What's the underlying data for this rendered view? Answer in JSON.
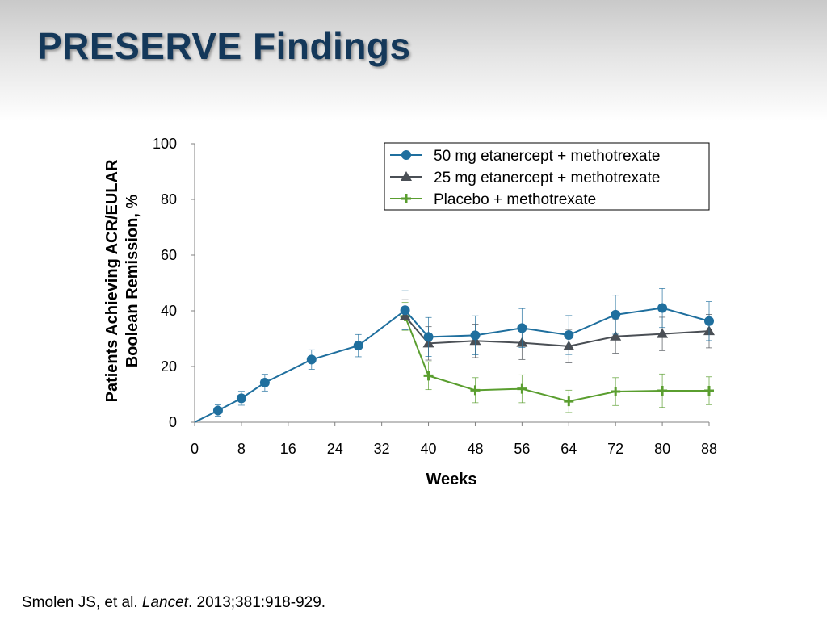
{
  "slide": {
    "title": "PRESERVE Findings",
    "citation_authors": "Smolen JS, et al.",
    "citation_journal": "Lancet",
    "citation_details": ". 2013;381:918-929."
  },
  "chart_data": {
    "type": "line",
    "title": "",
    "xlabel": "Weeks",
    "ylabel_lines": [
      "Patients Achieving ACR/EULAR",
      "Boolean Remission, %"
    ],
    "xlim": [
      0,
      88
    ],
    "ylim": [
      0,
      100
    ],
    "x_ticks": [
      0,
      8,
      16,
      24,
      32,
      40,
      48,
      56,
      64,
      72,
      80,
      88
    ],
    "y_ticks": [
      0,
      20,
      40,
      60,
      80,
      100
    ],
    "grid": false,
    "legend_position": "top-right",
    "series": [
      {
        "name": "Placebo + methotrexate",
        "color": "#5a9e2f",
        "marker": "plus",
        "x": [
          36,
          40,
          48,
          56,
          64,
          72,
          80,
          88
        ],
        "y": [
          38,
          16.7,
          11.5,
          12,
          7.5,
          11,
          11.3,
          11.3
        ],
        "err": [
          5,
          5,
          4.5,
          5,
          4,
          5,
          6,
          5
        ]
      },
      {
        "name": "25 mg etanercept + methotrexate",
        "color": "#4a4f55",
        "marker": "triangle",
        "x": [
          36,
          40,
          48,
          56,
          64,
          72,
          80,
          88
        ],
        "y": [
          38,
          28.3,
          29.2,
          28.5,
          27.3,
          30.8,
          31.7,
          32.7
        ],
        "err": [
          6,
          6,
          6,
          6,
          6,
          6,
          6,
          6
        ]
      },
      {
        "name": "50 mg etanercept + methotrexate",
        "color": "#1f6f9e",
        "marker": "circle",
        "x": [
          0,
          4,
          8,
          12,
          20,
          28,
          36,
          40,
          48,
          56,
          64,
          72,
          80,
          88
        ],
        "y": [
          0,
          4.2,
          8.6,
          14.2,
          22.5,
          27.5,
          40.2,
          30.6,
          31.2,
          33.8,
          31.3,
          38.6,
          41,
          36.3
        ],
        "err": [
          0,
          2,
          2.5,
          3,
          3.5,
          4,
          7,
          7,
          7,
          7,
          7,
          7,
          7,
          7
        ]
      }
    ],
    "legend_order": [
      "50 mg etanercept + methotrexate",
      "25 mg etanercept + methotrexate",
      "Placebo + methotrexate"
    ]
  }
}
